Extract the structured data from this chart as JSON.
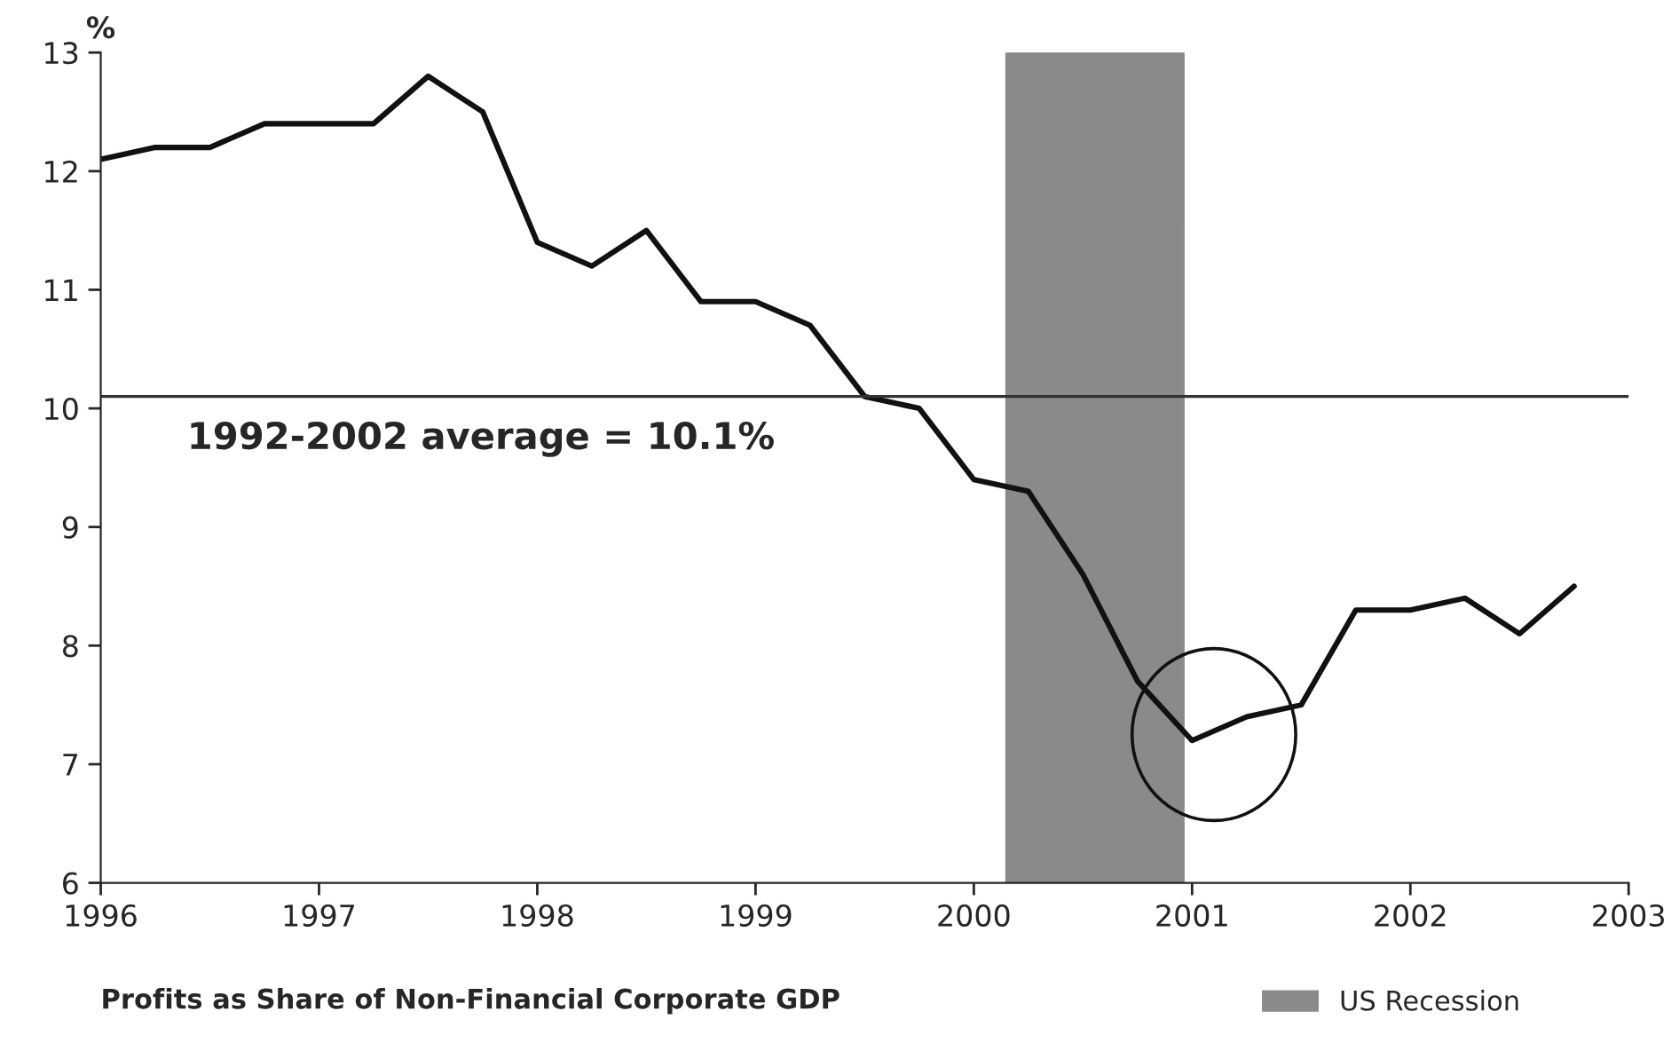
{
  "chart_data": {
    "type": "line",
    "title": "Profits as Share of Non-Financial Corporate GDP",
    "ylabel": "%",
    "x": [
      1996.0,
      1996.25,
      1996.5,
      1996.75,
      1997.0,
      1997.25,
      1997.5,
      1997.75,
      1998.0,
      1998.25,
      1998.5,
      1998.75,
      1999.0,
      1999.25,
      1999.5,
      1999.75,
      2000.0,
      2000.25,
      2000.5,
      2000.75,
      2001.0,
      2001.25,
      2001.5,
      2001.75,
      2002.0,
      2002.25,
      2002.5,
      2002.75
    ],
    "series": [
      {
        "color": "#111111",
        "values": [
          12.1,
          12.2,
          12.2,
          12.4,
          12.4,
          12.4,
          12.8,
          12.5,
          11.4,
          11.2,
          11.5,
          10.9,
          10.9,
          10.7,
          10.1,
          10.0,
          9.4,
          9.3,
          8.6,
          7.7,
          7.2,
          7.4,
          7.5,
          8.3,
          8.3,
          8.4,
          8.1,
          8.5
        ]
      }
    ],
    "xlim": [
      1996,
      2003
    ],
    "xticks": [
      1996,
      1997,
      1998,
      1999,
      2000,
      2001,
      2002,
      2003
    ],
    "ylim": [
      6,
      13
    ],
    "yticks": [
      6,
      7,
      8,
      9,
      10,
      11,
      12,
      13
    ],
    "ref_lines": [
      {
        "axis": "y",
        "value": 10.1,
        "label": "1992-2002 average = 10.1%",
        "color": "#333333"
      }
    ],
    "bands": [
      {
        "axis": "x",
        "from": 2000.15,
        "to": 2000.96,
        "label": "US Recession",
        "color": "#8a8a8a"
      }
    ],
    "grid": false,
    "legend": "bottom right",
    "marker": "none",
    "line_style": "solid"
  }
}
